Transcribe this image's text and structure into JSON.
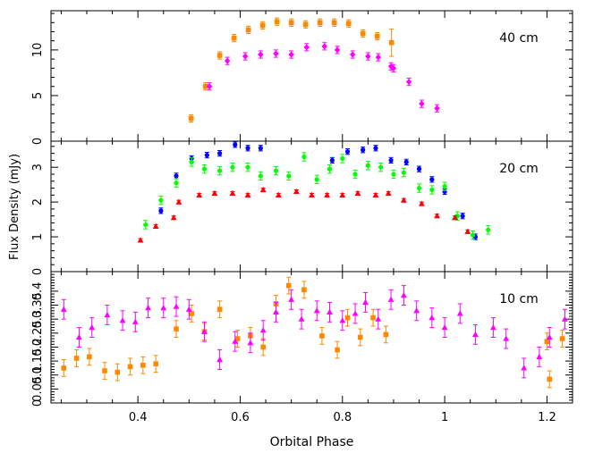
{
  "chart_data": [
    {
      "type": "scatter",
      "label": "40 cm",
      "xlabel": "",
      "xlim": [
        0.23,
        1.25
      ],
      "ylim": [
        0,
        14.3
      ],
      "yticks": [
        0,
        5,
        10
      ],
      "grid": false,
      "series": [
        {
          "color": "#ff8800",
          "marker": "square",
          "x": [
            0.255,
            0.286,
            0.31,
            0.34,
            0.364,
            0.392,
            0.42,
            0.448,
            0.476,
            0.504,
            0.532,
            0.56,
            0.588,
            0.616,
            0.644,
            0.672,
            0.7,
            0.728,
            0.756,
            0.784,
            0.812,
            0.84,
            0.868,
            0.896,
            0.924
          ],
          "y": [
            null,
            null,
            null,
            null,
            null,
            null,
            null,
            null,
            null,
            2.5,
            6.0,
            9.4,
            11.3,
            12.2,
            12.7,
            13.1,
            13.0,
            12.8,
            13.0,
            13.0,
            12.9,
            11.8,
            11.5,
            10.8,
            null
          ],
          "yerr": [
            null,
            null,
            null,
            null,
            null,
            null,
            null,
            null,
            null,
            0.4,
            0.4,
            0.4,
            0.4,
            0.4,
            0.4,
            0.4,
            0.4,
            0.4,
            0.4,
            0.4,
            0.4,
            0.4,
            0.4,
            1.5,
            null
          ]
        },
        {
          "color": "#ff00ff",
          "marker": "diamond",
          "x": [
            0.54,
            0.575,
            0.61,
            0.64,
            0.67,
            0.7,
            0.73,
            0.765,
            0.79,
            0.82,
            0.85,
            0.87,
            0.895,
            0.9,
            0.93,
            0.955,
            0.985
          ],
          "y": [
            6.0,
            8.8,
            9.3,
            9.5,
            9.6,
            9.5,
            10.3,
            10.4,
            10.0,
            9.5,
            9.3,
            9.2,
            8.2,
            8.0,
            6.5,
            4.1,
            3.6
          ],
          "yerr": [
            0.4,
            0.4,
            0.4,
            0.4,
            0.4,
            0.4,
            0.4,
            0.4,
            0.4,
            0.4,
            0.4,
            0.4,
            0.4,
            0.4,
            0.4,
            0.4,
            0.4
          ]
        }
      ]
    },
    {
      "type": "scatter",
      "label": "20 cm",
      "ylabel": "Flux Density (mJy)",
      "xlim": [
        0.23,
        1.25
      ],
      "ylim": [
        0,
        3.75
      ],
      "yticks": [
        0,
        1,
        2,
        3
      ],
      "grid": false,
      "series": [
        {
          "color": "#0000ff",
          "marker": "circle",
          "x": [
            0.445,
            0.475,
            0.505,
            0.535,
            0.56,
            0.59,
            0.615,
            0.64,
            0.78,
            0.81,
            0.84,
            0.865,
            0.895,
            0.925,
            0.95,
            0.975,
            1.0,
            1.035,
            1.06
          ],
          "y": [
            1.75,
            2.75,
            3.25,
            3.35,
            3.4,
            3.65,
            3.55,
            3.55,
            3.2,
            3.45,
            3.5,
            3.55,
            3.2,
            3.15,
            2.95,
            2.65,
            2.3,
            1.6,
            1.0
          ],
          "yerr": [
            0.08,
            0.08,
            0.08,
            0.08,
            0.08,
            0.08,
            0.08,
            0.08,
            0.08,
            0.08,
            0.08,
            0.08,
            0.08,
            0.08,
            0.08,
            0.08,
            0.08,
            0.08,
            0.08
          ]
        },
        {
          "color": "#00ff00",
          "marker": "circle",
          "x": [
            0.415,
            0.445,
            0.475,
            0.505,
            0.53,
            0.56,
            0.585,
            0.615,
            0.64,
            0.67,
            0.695,
            0.725,
            0.75,
            0.775,
            0.8,
            0.825,
            0.85,
            0.875,
            0.9,
            0.92,
            0.95,
            0.975,
            1.0,
            1.025,
            1.055,
            1.085
          ],
          "y": [
            1.35,
            2.05,
            2.55,
            3.15,
            2.95,
            2.9,
            3.0,
            3.0,
            2.75,
            2.9,
            2.75,
            3.3,
            2.65,
            2.95,
            3.25,
            2.8,
            3.05,
            3.0,
            2.8,
            2.85,
            2.4,
            2.35,
            2.45,
            1.6,
            1.05,
            1.2
          ],
          "yerr": [
            0.12,
            0.12,
            0.12,
            0.12,
            0.12,
            0.12,
            0.12,
            0.12,
            0.12,
            0.12,
            0.12,
            0.12,
            0.12,
            0.12,
            0.12,
            0.12,
            0.12,
            0.12,
            0.12,
            0.12,
            0.12,
            0.12,
            0.12,
            0.12,
            0.12,
            0.12
          ]
        },
        {
          "color": "#ff0000",
          "marker": "triangle",
          "x": [
            0.405,
            0.435,
            0.47,
            0.48,
            0.52,
            0.55,
            0.585,
            0.615,
            0.645,
            0.675,
            0.71,
            0.74,
            0.77,
            0.8,
            0.83,
            0.865,
            0.89,
            0.92,
            0.955,
            0.985,
            1.02,
            1.045
          ],
          "y": [
            0.9,
            1.3,
            1.55,
            2.0,
            2.2,
            2.25,
            2.25,
            2.2,
            2.35,
            2.2,
            2.3,
            2.2,
            2.2,
            2.2,
            2.25,
            2.2,
            2.25,
            2.05,
            1.95,
            1.6,
            1.55,
            1.15
          ],
          "yerr": [
            0.05,
            0.05,
            0.05,
            0.05,
            0.05,
            0.05,
            0.05,
            0.05,
            0.05,
            0.05,
            0.05,
            0.05,
            0.05,
            0.05,
            0.05,
            0.05,
            0.05,
            0.05,
            0.05,
            0.05,
            0.05,
            0.05
          ]
        }
      ]
    },
    {
      "type": "scatter",
      "label": "10 cm",
      "xlabel": "Orbital Phase",
      "xlim": [
        0.23,
        1.25
      ],
      "ylim": [
        0,
        0.47
      ],
      "yticks": [
        0,
        0.05,
        0.1,
        0.15,
        0.2,
        0.25,
        0.3,
        0.35,
        0.4
      ],
      "ytick_labels": [
        "0",
        "0.05",
        "0.1",
        "0.15",
        "0.2",
        "0.25",
        "0.3",
        "0.35",
        "0.4"
      ],
      "xticks": [
        0.4,
        0.6,
        0.8,
        1.0,
        1.2
      ],
      "xtick_labels": [
        "0.4",
        "0.6",
        "0.8",
        "1",
        "1.2"
      ],
      "grid": false,
      "series": [
        {
          "color": "#ff8800",
          "marker": "square",
          "x": [
            0.255,
            0.28,
            0.305,
            0.335,
            0.36,
            0.385,
            0.41,
            0.435,
            0.475,
            0.505,
            0.53,
            0.56,
            0.595,
            0.62,
            0.645,
            0.67,
            0.695,
            0.725,
            0.76,
            0.79,
            0.81,
            0.835,
            0.86,
            0.885,
            1.2,
            1.205,
            1.23
          ],
          "y": [
            0.125,
            0.16,
            0.165,
            0.115,
            0.11,
            0.13,
            0.135,
            0.14,
            0.265,
            0.32,
            0.255,
            0.335,
            0.23,
            0.24,
            0.2,
            0.355,
            0.42,
            0.405,
            0.24,
            0.19,
            0.305,
            0.235,
            0.305,
            0.245,
            0.22,
            0.085,
            0.23
          ],
          "yerr": [
            0.03,
            0.03,
            0.03,
            0.03,
            0.03,
            0.03,
            0.03,
            0.03,
            0.03,
            0.03,
            0.03,
            0.03,
            0.03,
            0.03,
            0.03,
            0.03,
            0.03,
            0.03,
            0.03,
            0.03,
            0.03,
            0.03,
            0.03,
            0.03,
            0.03,
            0.03,
            0.03
          ]
        },
        {
          "color": "#ff00ff",
          "marker": "triangle",
          "x": [
            0.255,
            0.285,
            0.31,
            0.34,
            0.37,
            0.395,
            0.42,
            0.45,
            0.475,
            0.5,
            0.53,
            0.56,
            0.59,
            0.62,
            0.645,
            0.67,
            0.7,
            0.72,
            0.75,
            0.775,
            0.8,
            0.825,
            0.845,
            0.87,
            0.895,
            0.92,
            0.945,
            0.975,
            1.0,
            1.03,
            1.06,
            1.095,
            1.12,
            1.155,
            1.185,
            1.205,
            1.235
          ],
          "y": [
            0.335,
            0.235,
            0.27,
            0.315,
            0.295,
            0.29,
            0.34,
            0.34,
            0.345,
            0.335,
            0.255,
            0.155,
            0.22,
            0.215,
            0.26,
            0.325,
            0.37,
            0.3,
            0.33,
            0.325,
            0.295,
            0.32,
            0.36,
            0.3,
            0.37,
            0.385,
            0.33,
            0.305,
            0.27,
            0.32,
            0.245,
            0.27,
            0.23,
            0.125,
            0.165,
            0.235,
            0.3
          ],
          "yerr": [
            0.035,
            0.035,
            0.035,
            0.035,
            0.035,
            0.035,
            0.035,
            0.035,
            0.035,
            0.035,
            0.035,
            0.035,
            0.035,
            0.035,
            0.035,
            0.035,
            0.035,
            0.035,
            0.035,
            0.035,
            0.035,
            0.035,
            0.035,
            0.035,
            0.035,
            0.035,
            0.035,
            0.035,
            0.035,
            0.035,
            0.035,
            0.035,
            0.035,
            0.035,
            0.035,
            0.035,
            0.035
          ]
        }
      ]
    }
  ]
}
